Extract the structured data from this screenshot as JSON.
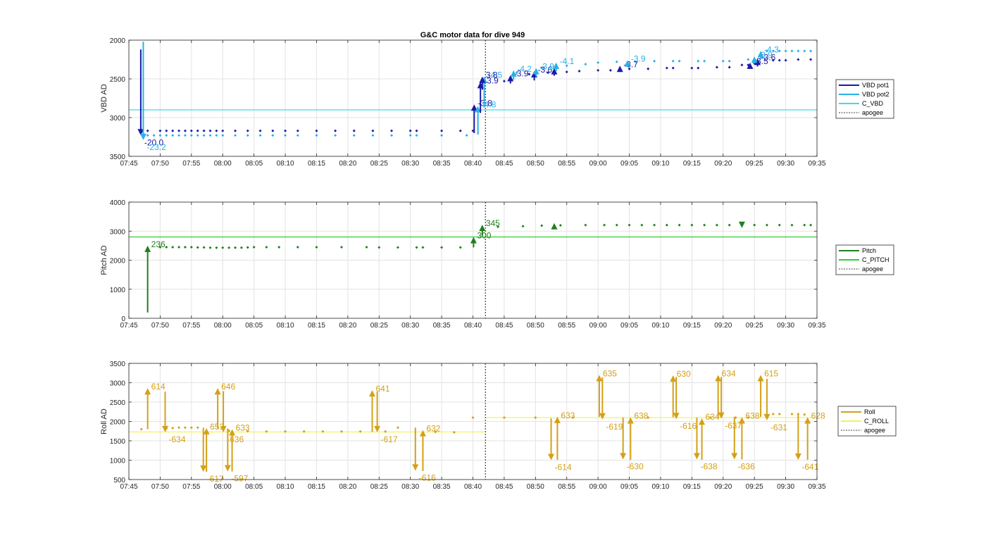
{
  "figure": {
    "title": "G&C motor data for dive 949"
  },
  "colors": {
    "vbd1": "#1a1aa6",
    "vbd2": "#2ab0e8",
    "c_vbd": "#3ddce0",
    "pitch": "#1f7f1f",
    "c_pitch": "#33cc33",
    "roll": "#d4a017",
    "c_roll": "#f2f25c",
    "apogee": "#404040",
    "grid": "#e3e3e3",
    "axis": "#262626"
  },
  "chart_data": [
    {
      "type": "scatter",
      "name": "vbd",
      "ylabel": "VBD AD",
      "xlim": [
        "07:45",
        "09:35"
      ],
      "ylim": [
        3500,
        2000
      ],
      "y_reversed": true,
      "xticks": [
        "07:45",
        "07:50",
        "07:55",
        "08:00",
        "08:05",
        "08:10",
        "08:15",
        "08:20",
        "08:25",
        "08:30",
        "08:35",
        "08:40",
        "08:45",
        "08:50",
        "08:55",
        "09:00",
        "09:05",
        "09:10",
        "09:15",
        "09:20",
        "09:25",
        "09:30",
        "09:35"
      ],
      "yticks": [
        2000,
        2500,
        3000,
        3500
      ],
      "hlines": [
        {
          "series": "C_VBD",
          "y": 2900
        }
      ],
      "apogee": "08:42",
      "legend": [
        {
          "label": "VBD pot1",
          "key": "vbd1",
          "dash": false
        },
        {
          "label": "VBD pot2",
          "key": "vbd2",
          "dash": false
        },
        {
          "label": "C_VBD",
          "key": "c_vbd",
          "dash": false
        },
        {
          "label": "apogee",
          "key": "apogee",
          "dash": true
        }
      ],
      "points": [
        {
          "series": "VBD pot1",
          "x": [
            "07:47",
            "07:48",
            "07:50",
            "07:51",
            "07:52",
            "07:53",
            "07:54",
            "07:55",
            "07:56",
            "07:57",
            "07:58",
            "07:59",
            "08:00",
            "08:02",
            "08:04",
            "08:06",
            "08:08",
            "08:10",
            "08:12",
            "08:15",
            "08:18",
            "08:21",
            "08:24",
            "08:27",
            "08:30",
            "08:31",
            "08:35",
            "08:38",
            "08:40",
            "08:45",
            "08:49",
            "08:52",
            "08:55",
            "08:57",
            "09:00",
            "09:02",
            "09:05",
            "09:08",
            "09:11",
            "09:12",
            "09:15",
            "09:16",
            "09:19",
            "09:21",
            "09:23",
            "09:24",
            "09:25",
            "09:28",
            "09:29",
            "09:30",
            "09:32",
            "09:34"
          ],
          "y": [
            3170,
            3170,
            3170,
            3170,
            3170,
            3170,
            3170,
            3170,
            3170,
            3170,
            3170,
            3170,
            3170,
            3170,
            3170,
            3170,
            3170,
            3170,
            3170,
            3170,
            3170,
            3170,
            3170,
            3170,
            3170,
            3170,
            3170,
            3170,
            3170,
            2530,
            2440,
            2420,
            2410,
            2400,
            2390,
            2390,
            2370,
            2370,
            2360,
            2360,
            2360,
            2360,
            2350,
            2350,
            2320,
            2320,
            2300,
            2260,
            2260,
            2260,
            2250,
            2250
          ]
        },
        {
          "series": "VBD pot2",
          "x": [
            "07:48",
            "07:49",
            "07:50",
            "07:51",
            "07:52",
            "07:53",
            "07:54",
            "07:55",
            "07:56",
            "07:57",
            "07:58",
            "07:59",
            "08:00",
            "08:02",
            "08:04",
            "08:06",
            "08:08",
            "08:10",
            "08:12",
            "08:15",
            "08:18",
            "08:21",
            "08:24",
            "08:27",
            "08:30",
            "08:31",
            "08:35",
            "08:39",
            "08:47",
            "08:51",
            "08:55",
            "08:58",
            "09:00",
            "09:03",
            "09:06",
            "09:09",
            "09:12",
            "09:13",
            "09:16",
            "09:17",
            "09:20",
            "09:21",
            "09:24",
            "09:27",
            "09:28",
            "09:29",
            "09:30",
            "09:31",
            "09:32",
            "09:33",
            "09:34"
          ],
          "y": [
            3230,
            3230,
            3230,
            3230,
            3230,
            3230,
            3230,
            3230,
            3230,
            3230,
            3230,
            3230,
            3230,
            3230,
            3230,
            3230,
            3230,
            3230,
            3230,
            3230,
            3230,
            3230,
            3230,
            3230,
            3230,
            3230,
            3230,
            3230,
            2420,
            2360,
            2330,
            2310,
            2290,
            2280,
            2280,
            2270,
            2270,
            2270,
            2270,
            2270,
            2270,
            2270,
            2250,
            2140,
            2140,
            2140,
            2140,
            2140,
            2140,
            2140,
            2140
          ]
        }
      ],
      "arrows": [
        {
          "series": "VBD pot1",
          "x": "07:46.9",
          "y1": 2120,
          "y2": 3230,
          "label": "-20.0"
        },
        {
          "series": "VBD pot2",
          "x": "07:47.3",
          "y1": 2020,
          "y2": 3290,
          "label": "-23.2"
        },
        {
          "series": "VBD pot1",
          "x": "08:40.2",
          "y1": 3200,
          "y2": 2830,
          "label": "-3.8"
        },
        {
          "series": "VBD pot2",
          "x": "08:40.8",
          "y1": 3220,
          "y2": 2850,
          "label": "-4.8"
        },
        {
          "series": "VBD pot1",
          "x": "08:41.2",
          "y1": 2940,
          "y2": 2540,
          "label": "-3.9"
        },
        {
          "series": "VBD pot2",
          "x": "08:41.8",
          "y1": 2870,
          "y2": 2470,
          "label": "-4.5"
        },
        {
          "series": "VBD pot1",
          "x": "08:41.5",
          "y1": 2640,
          "y2": 2470,
          "label": "3.8"
        },
        {
          "series": "VBD pot1",
          "x": "08:46.0",
          "y1": 2560,
          "y2": 2450,
          "label": "-3.9"
        },
        {
          "series": "VBD pot2",
          "x": "08:46.5",
          "y1": 2510,
          "y2": 2390,
          "label": "-4.2"
        },
        {
          "series": "VBD pot1",
          "x": "08:49.8",
          "y1": 2520,
          "y2": 2400,
          "label": "-3.6"
        },
        {
          "series": "VBD pot2",
          "x": "08:50.1",
          "y1": 2470,
          "y2": 2360,
          "label": "-3.9"
        },
        {
          "series": "VBD pot1",
          "x": "08:53.0",
          "y1": 2460,
          "y2": 2360,
          "label": ""
        },
        {
          "series": "VBD pot2",
          "x": "08:53.3",
          "y1": 2400,
          "y2": 2290,
          "label": "-4.1"
        },
        {
          "series": "VBD pot1",
          "x": "09:03.5",
          "y1": 2410,
          "y2": 2330,
          "label": "-3.7"
        },
        {
          "series": "VBD pot2",
          "x": "09:04.7",
          "y1": 2330,
          "y2": 2260,
          "label": "-3.9"
        },
        {
          "series": "VBD pot1",
          "x": "09:24.3",
          "y1": 2360,
          "y2": 2290,
          "label": "-3.5"
        },
        {
          "series": "VBD pot1",
          "x": "09:25.5",
          "y1": 2340,
          "y2": 2240,
          "label": "-3.6"
        },
        {
          "series": "VBD pot2",
          "x": "09:25.0",
          "y1": 2300,
          "y2": 2210,
          "label": "-3.9"
        },
        {
          "series": "VBD pot2",
          "x": "09:26.0",
          "y1": 2240,
          "y2": 2140,
          "label": "-4.3"
        }
      ]
    },
    {
      "type": "scatter",
      "name": "pitch",
      "ylabel": "Pitch AD",
      "xlim": [
        "07:45",
        "09:35"
      ],
      "ylim": [
        0,
        4000
      ],
      "xticks": [
        "07:45",
        "07:50",
        "07:55",
        "08:00",
        "08:05",
        "08:10",
        "08:15",
        "08:20",
        "08:25",
        "08:30",
        "08:35",
        "08:40",
        "08:45",
        "08:50",
        "08:55",
        "09:00",
        "09:05",
        "09:10",
        "09:15",
        "09:20",
        "09:25",
        "09:30",
        "09:35"
      ],
      "yticks": [
        0,
        1000,
        2000,
        3000,
        4000
      ],
      "hlines": [
        {
          "series": "C_PITCH",
          "y": 2800
        }
      ],
      "apogee": "08:42",
      "legend": [
        {
          "label": "Pitch",
          "key": "pitch",
          "dash": false
        },
        {
          "label": "C_PITCH",
          "key": "c_pitch",
          "dash": false
        },
        {
          "label": "apogee",
          "key": "apogee",
          "dash": true
        }
      ],
      "points": [
        {
          "series": "Pitch",
          "x": [
            "07:50",
            "07:51",
            "07:52",
            "07:53",
            "07:54",
            "07:55",
            "07:56",
            "07:57",
            "07:58",
            "07:59",
            "08:00",
            "08:01",
            "08:02",
            "08:03",
            "08:04",
            "08:05",
            "08:07",
            "08:09",
            "08:12",
            "08:15",
            "08:19",
            "08:23",
            "08:25",
            "08:28",
            "08:31",
            "08:32",
            "08:35",
            "08:38",
            "08:44",
            "08:48",
            "08:51",
            "08:54",
            "08:58",
            "09:01",
            "09:03",
            "09:05",
            "09:07",
            "09:09",
            "09:11",
            "09:13",
            "09:15",
            "09:17",
            "09:19",
            "09:21",
            "09:23",
            "09:25",
            "09:27",
            "09:29",
            "09:31",
            "09:33",
            "09:34"
          ],
          "y": [
            2450,
            2450,
            2450,
            2450,
            2450,
            2450,
            2440,
            2440,
            2430,
            2430,
            2430,
            2430,
            2430,
            2430,
            2440,
            2450,
            2450,
            2450,
            2450,
            2450,
            2450,
            2450,
            2440,
            2440,
            2440,
            2440,
            2440,
            2440,
            3150,
            3170,
            3190,
            3200,
            3210,
            3210,
            3210,
            3210,
            3210,
            3210,
            3210,
            3210,
            3210,
            3210,
            3210,
            3210,
            3210,
            3210,
            3210,
            3210,
            3210,
            3210,
            3210
          ]
        }
      ],
      "arrows": [
        {
          "series": "Pitch",
          "x": "07:48.0",
          "y1": 200,
          "y2": 2500,
          "label": "236"
        },
        {
          "series": "Pitch",
          "x": "08:40.1",
          "y1": 2440,
          "y2": 2800,
          "label": "300"
        },
        {
          "series": "Pitch",
          "x": "08:41.5",
          "y1": 2840,
          "y2": 3220,
          "label": "345"
        },
        {
          "series": "Pitch",
          "x": "08:53.0",
          "y1": 3170,
          "y2": 3280,
          "label": ""
        },
        {
          "series": "Pitch",
          "x": "09:23.0",
          "y1": 3260,
          "y2": 3110,
          "label": ""
        }
      ]
    },
    {
      "type": "scatter",
      "name": "roll",
      "ylabel": "Roll AD",
      "xlim": [
        "07:45",
        "09:35"
      ],
      "ylim": [
        500,
        3500
      ],
      "xticks": [
        "07:45",
        "07:50",
        "07:55",
        "08:00",
        "08:05",
        "08:10",
        "08:15",
        "08:20",
        "08:25",
        "08:30",
        "08:35",
        "08:40",
        "08:45",
        "08:50",
        "08:55",
        "09:00",
        "09:05",
        "09:10",
        "09:15",
        "09:20",
        "09:25",
        "09:30",
        "09:35"
      ],
      "yticks": [
        500,
        1000,
        1500,
        2000,
        2500,
        3000,
        3500
      ],
      "hlines": [
        {
          "series": "C_ROLL",
          "y": 1730,
          "x_from": "07:45",
          "x_to": "08:42"
        },
        {
          "series": "C_ROLL",
          "y": 2100,
          "x_from": "08:42",
          "x_to": "09:35"
        }
      ],
      "apogee": "08:42",
      "legend": [
        {
          "label": "Roll",
          "key": "roll",
          "dash": false
        },
        {
          "label": "C_ROLL",
          "key": "c_roll",
          "dash": false
        },
        {
          "label": "apogee",
          "key": "apogee",
          "dash": true
        }
      ],
      "points": [
        {
          "series": "Roll",
          "x": [
            "07:47",
            "07:51",
            "07:52",
            "07:53",
            "07:54",
            "07:55",
            "07:56",
            "08:01",
            "08:04",
            "08:07",
            "08:10",
            "08:13",
            "08:16",
            "08:19",
            "08:22",
            "08:26",
            "08:28",
            "08:34",
            "08:37",
            "08:40",
            "08:45",
            "08:50",
            "08:56",
            "09:08",
            "09:18",
            "09:22",
            "09:24",
            "09:28",
            "09:29",
            "09:31",
            "09:32",
            "09:33"
          ],
          "y": [
            1800,
            1820,
            1830,
            1840,
            1840,
            1840,
            1840,
            1760,
            1750,
            1740,
            1740,
            1740,
            1740,
            1740,
            1740,
            1740,
            1840,
            1730,
            1720,
            2100,
            2100,
            2100,
            2100,
            2100,
            2100,
            2100,
            2100,
            2190,
            2190,
            2190,
            2190,
            2180
          ]
        }
      ],
      "arrows": [
        {
          "series": "Roll",
          "x": "07:48.0",
          "y1": 1800,
          "y2": 2860,
          "label": "614"
        },
        {
          "series": "Roll",
          "x": "07:50.8",
          "y1": 2770,
          "y2": 1720,
          "label": "-634"
        },
        {
          "series": "Roll",
          "x": "07:56.9",
          "y1": 1840,
          "y2": 700,
          "label": "-617"
        },
        {
          "series": "Roll",
          "x": "07:57.4",
          "y1": 700,
          "y2": 1830,
          "label": "653"
        },
        {
          "series": "Roll",
          "x": "07:59.2",
          "y1": 1820,
          "y2": 2860,
          "label": "646"
        },
        {
          "series": "Roll",
          "x": "08:00.1",
          "y1": 2780,
          "y2": 1720,
          "label": "-636"
        },
        {
          "series": "Roll",
          "x": "08:00.8",
          "y1": 1820,
          "y2": 710,
          "label": "-597"
        },
        {
          "series": "Roll",
          "x": "08:01.5",
          "y1": 710,
          "y2": 1800,
          "label": "633"
        },
        {
          "series": "Roll",
          "x": "08:23.9",
          "y1": 1730,
          "y2": 2810,
          "label": "641"
        },
        {
          "series": "Roll",
          "x": "08:24.7",
          "y1": 2770,
          "y2": 1720,
          "label": "-617"
        },
        {
          "series": "Roll",
          "x": "08:30.8",
          "y1": 1840,
          "y2": 730,
          "label": "-616"
        },
        {
          "series": "Roll",
          "x": "08:32.0",
          "y1": 720,
          "y2": 1780,
          "label": "632"
        },
        {
          "series": "Roll",
          "x": "08:52.5",
          "y1": 2080,
          "y2": 1000,
          "label": "-614"
        },
        {
          "series": "Roll",
          "x": "08:53.5",
          "y1": 1010,
          "y2": 2120,
          "label": "633"
        },
        {
          "series": "Roll",
          "x": "09:00.2",
          "y1": 2120,
          "y2": 3200,
          "label": "635"
        },
        {
          "series": "Roll",
          "x": "09:00.7",
          "y1": 3140,
          "y2": 2050,
          "label": "-619"
        },
        {
          "series": "Roll",
          "x": "09:04.0",
          "y1": 2100,
          "y2": 1020,
          "label": "-630"
        },
        {
          "series": "Roll",
          "x": "09:05.2",
          "y1": 1010,
          "y2": 2110,
          "label": "638"
        },
        {
          "series": "Roll",
          "x": "09:12.0",
          "y1": 2110,
          "y2": 3190,
          "label": "630"
        },
        {
          "series": "Roll",
          "x": "09:12.5",
          "y1": 3150,
          "y2": 2060,
          "label": "-616"
        },
        {
          "series": "Roll",
          "x": "09:15.8",
          "y1": 2100,
          "y2": 1020,
          "label": "-638"
        },
        {
          "series": "Roll",
          "x": "09:16.6",
          "y1": 1010,
          "y2": 2080,
          "label": "634"
        },
        {
          "series": "Roll",
          "x": "09:19.2",
          "y1": 2090,
          "y2": 3200,
          "label": "634"
        },
        {
          "series": "Roll",
          "x": "09:19.7",
          "y1": 3150,
          "y2": 2070,
          "label": "-637"
        },
        {
          "series": "Roll",
          "x": "09:21.8",
          "y1": 2120,
          "y2": 1020,
          "label": "-636"
        },
        {
          "series": "Roll",
          "x": "09:23.0",
          "y1": 1020,
          "y2": 2110,
          "label": "638"
        },
        {
          "series": "Roll",
          "x": "09:26.0",
          "y1": 2120,
          "y2": 3200,
          "label": "615"
        },
        {
          "series": "Roll",
          "x": "09:27.0",
          "y1": 3100,
          "y2": 2030,
          "label": "-631"
        },
        {
          "series": "Roll",
          "x": "09:32.0",
          "y1": 2190,
          "y2": 1010,
          "label": "-641"
        },
        {
          "series": "Roll",
          "x": "09:33.5",
          "y1": 1010,
          "y2": 2110,
          "label": "628"
        }
      ]
    }
  ]
}
